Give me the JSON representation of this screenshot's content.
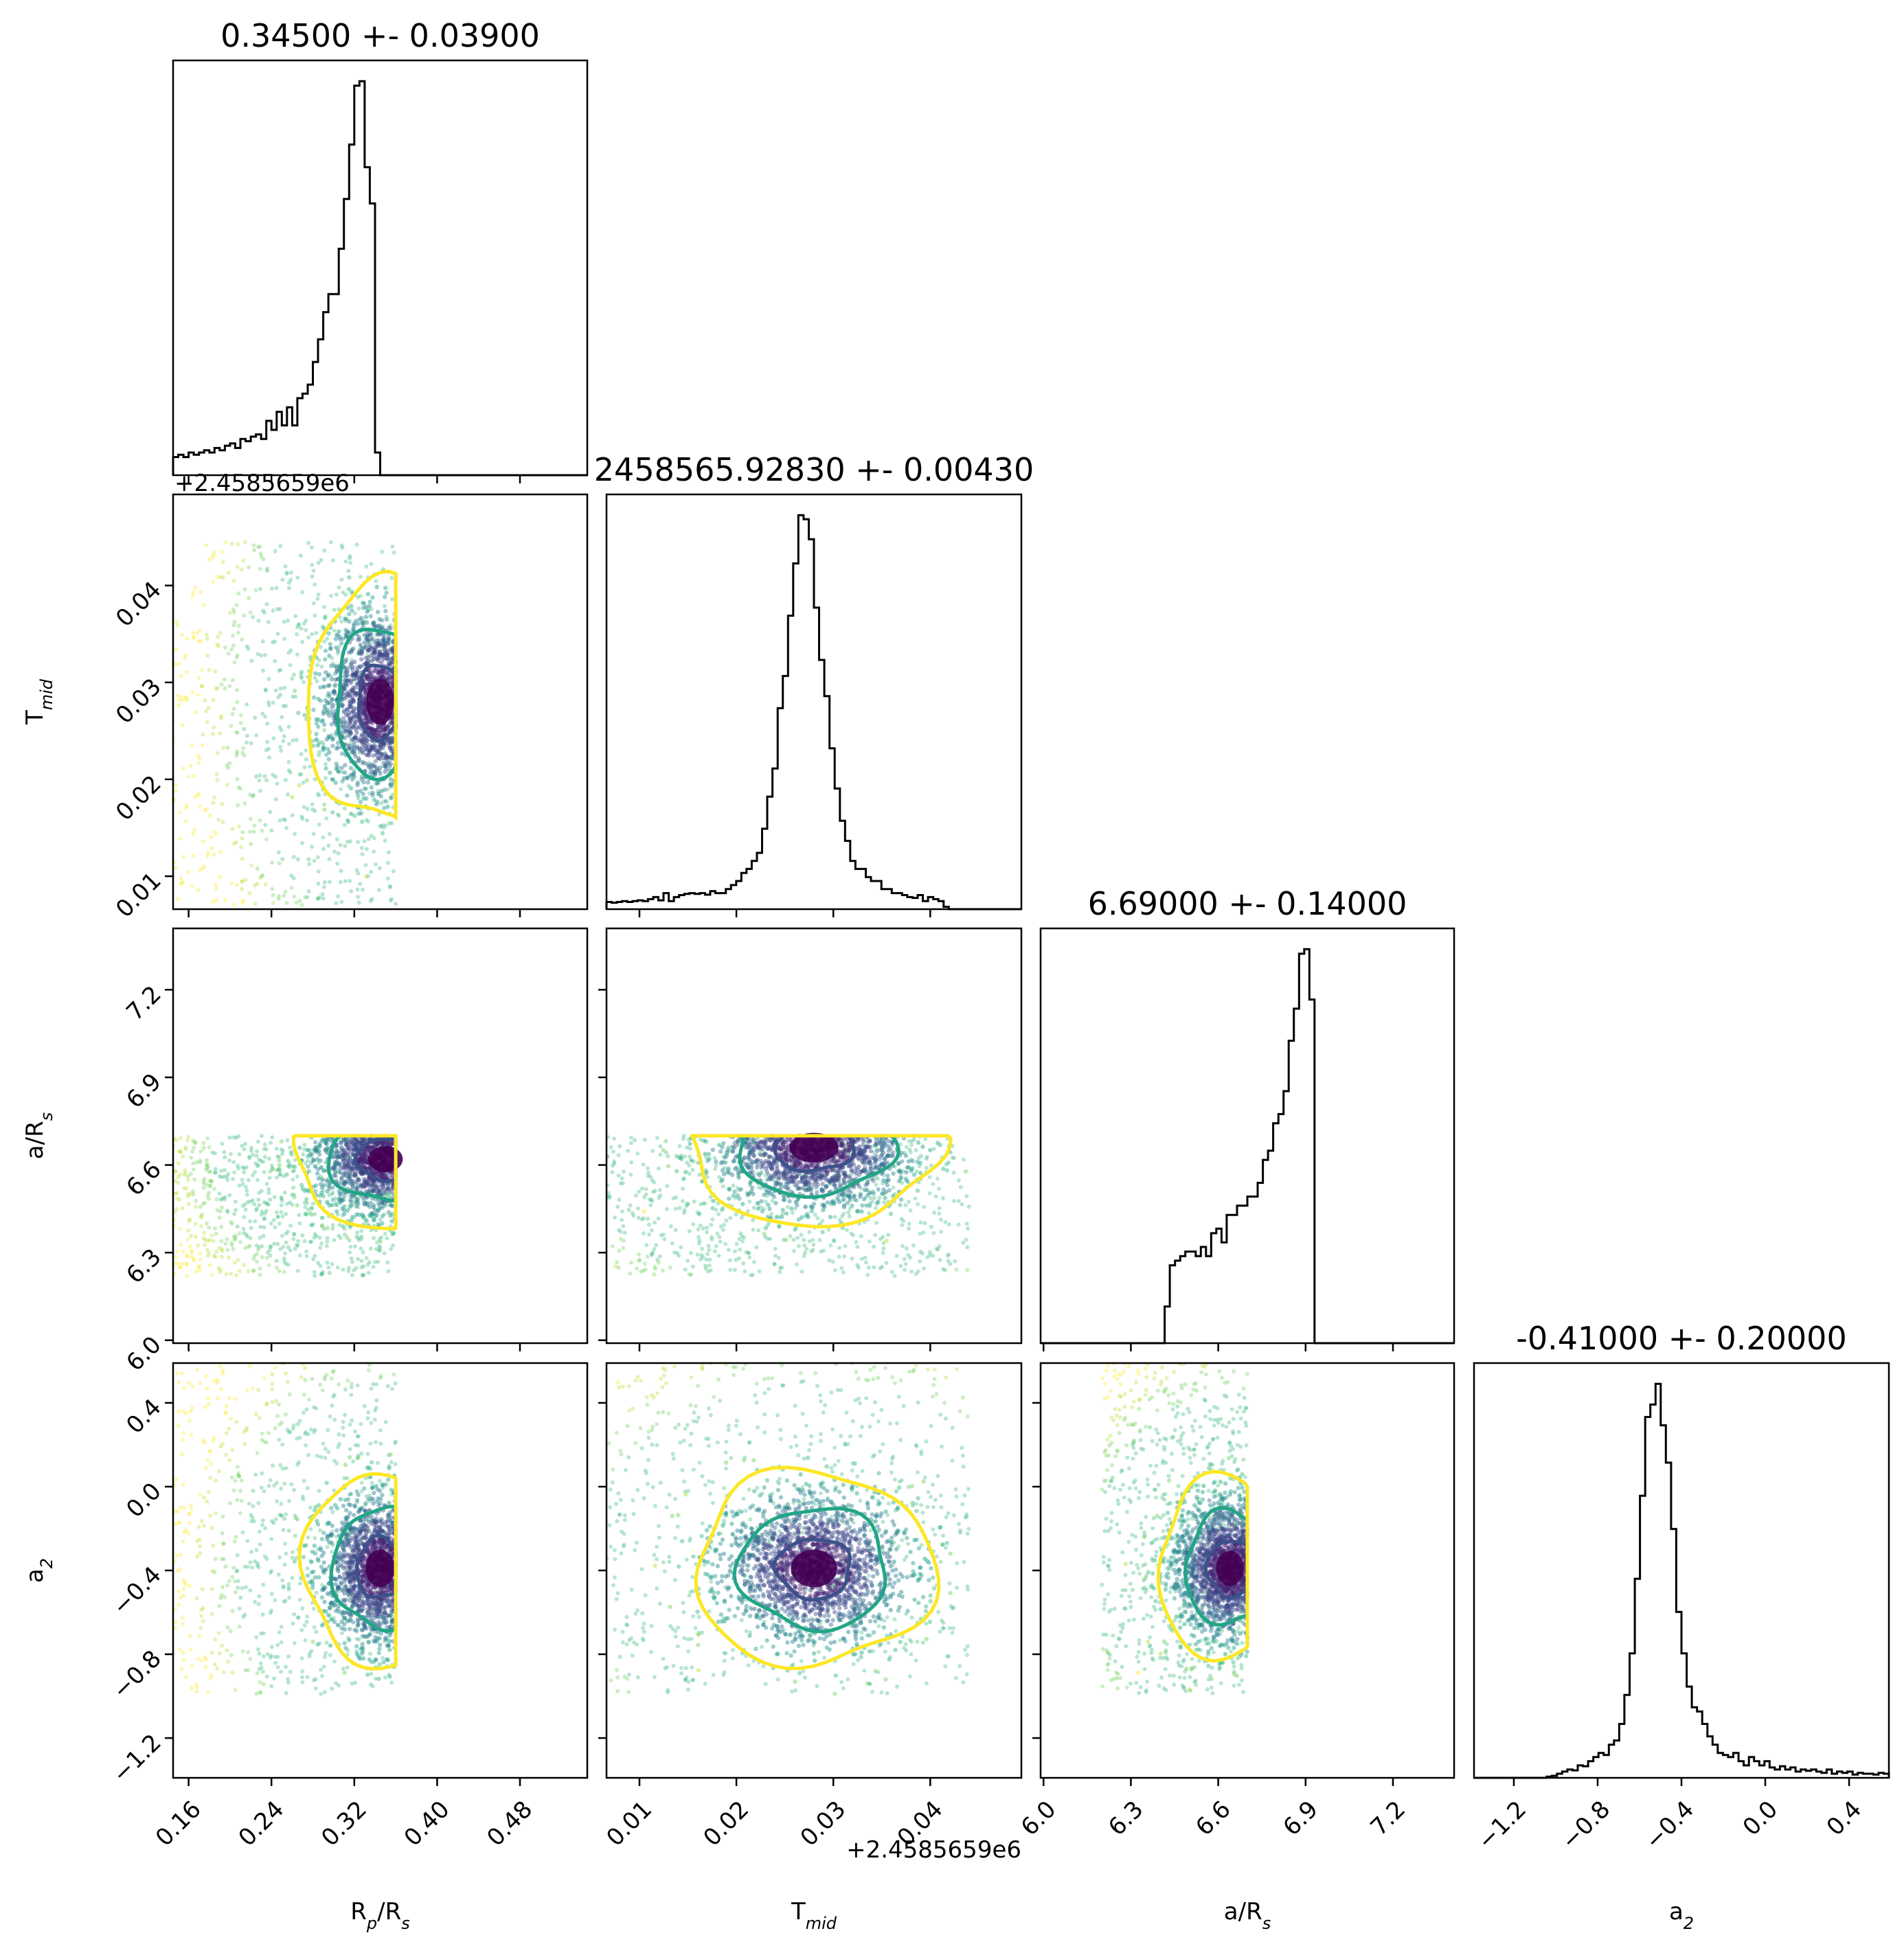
{
  "chart_data": {
    "type": "corner",
    "params": [
      {
        "key": "rp",
        "label_main": "R",
        "label_sub": "p",
        "label_tail": "/R",
        "label_tail_sub": "s",
        "title": "0.34500 +- 0.03900",
        "range": [
          0.145,
          0.545
        ],
        "ticks": [
          0.16,
          0.24,
          0.32,
          0.4,
          0.48
        ],
        "tick_labels": [
          "0.16",
          "0.24",
          "0.32",
          "0.40",
          "0.48"
        ],
        "offset": ""
      },
      {
        "key": "tmid",
        "label_main": "T",
        "label_sub": "mid",
        "label_tail": "",
        "label_tail_sub": "",
        "title": "2458565.92830 +- 0.00430",
        "range": [
          0.0066,
          0.0494
        ],
        "ticks": [
          0.01,
          0.02,
          0.03,
          0.04
        ],
        "tick_labels": [
          "0.01",
          "0.02",
          "0.03",
          "0.04"
        ],
        "offset": "+2.4585659e6"
      },
      {
        "key": "ars",
        "label_main": "a/R",
        "label_sub": "s",
        "label_tail": "",
        "label_tail_sub": "",
        "title": "6.69000 +- 0.14000",
        "range": [
          5.99,
          7.41
        ],
        "ticks": [
          6.0,
          6.3,
          6.6,
          6.9,
          7.2
        ],
        "tick_labels": [
          "6.0",
          "6.3",
          "6.6",
          "6.9",
          "7.2"
        ],
        "offset": ""
      },
      {
        "key": "a2",
        "label_main": "a",
        "label_sub": "2",
        "label_tail": "",
        "label_tail_sub": "",
        "title": "-0.41000 +- 0.20000",
        "range": [
          -1.39,
          0.59
        ],
        "ticks": [
          -1.2,
          -0.8,
          -0.4,
          0.0,
          0.4
        ],
        "tick_labels": [
          "−1.2",
          "−0.8",
          "−0.4",
          "0.0",
          "0.4"
        ],
        "offset": ""
      }
    ],
    "histograms": [
      {
        "x_range": [
          0.145,
          0.545
        ],
        "bins": 80,
        "counts": [
          0.04,
          0.045,
          0.04,
          0.05,
          0.045,
          0.05,
          0.055,
          0.05,
          0.06,
          0.055,
          0.065,
          0.07,
          0.06,
          0.08,
          0.075,
          0.085,
          0.09,
          0.08,
          0.12,
          0.1,
          0.14,
          0.11,
          0.15,
          0.11,
          0.17,
          0.18,
          0.2,
          0.25,
          0.3,
          0.36,
          0.4,
          0.4,
          0.5,
          0.61,
          0.73,
          0.86,
          0.87,
          0.68,
          0.6,
          0.05,
          0,
          0,
          0,
          0,
          0,
          0,
          0,
          0,
          0,
          0,
          0,
          0,
          0,
          0,
          0,
          0,
          0,
          0,
          0,
          0,
          0,
          0,
          0,
          0,
          0,
          0,
          0,
          0,
          0,
          0,
          0,
          0,
          0,
          0,
          0,
          0,
          0,
          0,
          0,
          0
        ]
      },
      {
        "x_range": [
          0.0066,
          0.0494
        ],
        "bins": 80,
        "counts": [
          0.018,
          0.016,
          0.018,
          0.02,
          0.018,
          0.02,
          0.022,
          0.02,
          0.025,
          0.03,
          0.022,
          0.04,
          0.02,
          0.03,
          0.035,
          0.038,
          0.04,
          0.038,
          0.04,
          0.036,
          0.045,
          0.04,
          0.04,
          0.05,
          0.06,
          0.07,
          0.09,
          0.1,
          0.12,
          0.14,
          0.2,
          0.28,
          0.35,
          0.5,
          0.58,
          0.73,
          0.86,
          0.98,
          0.97,
          0.92,
          0.75,
          0.62,
          0.53,
          0.4,
          0.3,
          0.22,
          0.17,
          0.12,
          0.1,
          0.1,
          0.08,
          0.07,
          0.07,
          0.05,
          0.05,
          0.04,
          0.04,
          0.035,
          0.03,
          0.028,
          0.035,
          0.02,
          0.03,
          0.025,
          0.02,
          0.006,
          0,
          0,
          0,
          0,
          0,
          0,
          0,
          0,
          0,
          0,
          0,
          0,
          0,
          0
        ]
      },
      {
        "x_range": [
          5.99,
          7.41
        ],
        "bins": 80,
        "counts": [
          0,
          0,
          0,
          0,
          0,
          0,
          0,
          0,
          0,
          0,
          0,
          0,
          0,
          0,
          0,
          0,
          0,
          0,
          0,
          0,
          0,
          0,
          0,
          0,
          0.08,
          0.17,
          0.18,
          0.19,
          0.2,
          0.2,
          0.19,
          0.21,
          0.19,
          0.24,
          0.25,
          0.22,
          0.28,
          0.28,
          0.3,
          0.3,
          0.32,
          0.32,
          0.35,
          0.4,
          0.42,
          0.48,
          0.5,
          0.55,
          0.66,
          0.73,
          0.85,
          0.86,
          0.75,
          0,
          0,
          0,
          0,
          0,
          0,
          0,
          0,
          0,
          0,
          0,
          0,
          0,
          0,
          0,
          0,
          0,
          0,
          0,
          0,
          0,
          0,
          0,
          0,
          0,
          0,
          0
        ]
      },
      {
        "x_range": [
          -1.39,
          0.59
        ],
        "bins": 80,
        "counts": [
          0,
          0,
          0,
          0,
          0,
          0,
          0,
          0,
          0,
          0,
          0,
          0,
          0,
          0,
          0.003,
          0.005,
          0.01,
          0.015,
          0.02,
          0.018,
          0.03,
          0.028,
          0.04,
          0.05,
          0.06,
          0.055,
          0.08,
          0.09,
          0.13,
          0.2,
          0.3,
          0.48,
          0.68,
          0.87,
          0.9,
          0.95,
          0.85,
          0.76,
          0.6,
          0.4,
          0.3,
          0.22,
          0.17,
          0.16,
          0.13,
          0.1,
          0.08,
          0.06,
          0.055,
          0.05,
          0.06,
          0.04,
          0.03,
          0.05,
          0.04,
          0.03,
          0.04,
          0.025,
          0.02,
          0.028,
          0.02,
          0.025,
          0.015,
          0.02,
          0.017,
          0.02,
          0.015,
          0.012,
          0.02,
          0.01,
          0.015,
          0.012,
          0.015,
          0.008,
          0.012,
          0.01,
          0.01,
          0.008,
          0.012,
          0.01
        ]
      }
    ],
    "scatter_2d": [
      {
        "row": 1,
        "col": 0,
        "center": [
          0.345,
          0.028
        ],
        "spread": [
          0.048,
          0.0085
        ],
        "clip_x": [
          0.145,
          0.36
        ],
        "clip_y": [
          0.007,
          0.0445
        ]
      },
      {
        "row": 2,
        "col": 0,
        "center": [
          0.35,
          6.62
        ],
        "spread": [
          0.06,
          0.16
        ],
        "clip_x": [
          0.145,
          0.36
        ],
        "clip_y": [
          6.22,
          6.7
        ]
      },
      {
        "row": 2,
        "col": 1,
        "center": [
          0.028,
          6.66
        ],
        "spread": [
          0.009,
          0.18
        ],
        "clip_x": [
          0.0066,
          0.044
        ],
        "clip_y": [
          6.22,
          6.7
        ]
      },
      {
        "row": 3,
        "col": 0,
        "center": [
          0.345,
          -0.39
        ],
        "spread": [
          0.05,
          0.32
        ],
        "clip_x": [
          0.145,
          0.36
        ],
        "clip_y": [
          -0.99,
          0.59
        ]
      },
      {
        "row": 3,
        "col": 1,
        "center": [
          0.028,
          -0.39
        ],
        "spread": [
          0.0085,
          0.32
        ],
        "clip_x": [
          0.0066,
          0.044
        ],
        "clip_y": [
          -0.99,
          0.59
        ]
      },
      {
        "row": 3,
        "col": 2,
        "center": [
          6.64,
          -0.39
        ],
        "spread": [
          0.17,
          0.3
        ],
        "clip_x": [
          6.2,
          6.7
        ],
        "clip_y": [
          -0.99,
          0.59
        ]
      }
    ],
    "contour_levels": [
      "1-sigma",
      "2-sigma",
      "3-sigma"
    ],
    "colormap": "viridis",
    "colors": {
      "level_1": "#3b528b",
      "level_2": "#21a685",
      "level_3": "#fde725",
      "hist": "#000000",
      "dense": "#440154"
    }
  }
}
